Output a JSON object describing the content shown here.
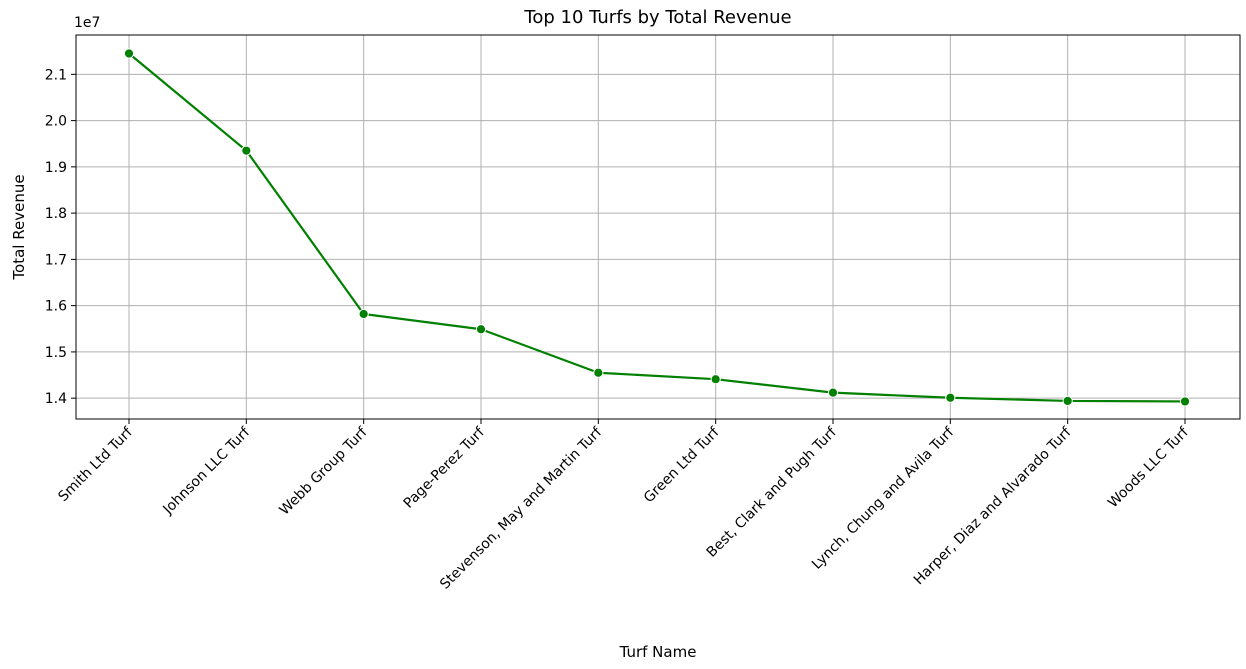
{
  "chart_data": {
    "type": "line",
    "title": "Top 10 Turfs by Total Revenue",
    "xlabel": "Turf Name",
    "ylabel": "Total Revenue",
    "y_offset_label": "1e7",
    "categories": [
      "Smith Ltd Turf",
      "Johnson LLC Turf",
      "Webb Group Turf",
      "Page-Perez Turf",
      "Stevenson, May and Martin Turf",
      "Green Ltd Turf",
      "Best, Clark and Pugh Turf",
      "Lynch, Chung and Avila Turf",
      "Harper, Diaz and Alvarado Turf",
      "Woods LLC Turf"
    ],
    "series": [
      {
        "values": [
          21450000,
          19350000,
          15820000,
          15490000,
          14550000,
          14410000,
          14120000,
          14010000,
          13940000,
          13930000
        ]
      }
    ],
    "y_ticks": [
      14000000,
      15000000,
      16000000,
      17000000,
      18000000,
      19000000,
      20000000,
      21000000
    ],
    "y_tick_labels": [
      "1.4",
      "1.5",
      "1.6",
      "1.7",
      "1.8",
      "1.9",
      "2.0",
      "2.1"
    ],
    "ylim": [
      13550000,
      21850000
    ],
    "grid": true,
    "line_color": "#008000",
    "marker": "circle"
  }
}
